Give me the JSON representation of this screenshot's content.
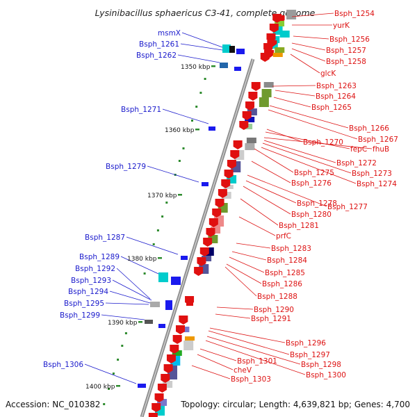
{
  "title": "Lysinibacillus sphaericus C3-41, complete genome",
  "footer": {
    "accession": "Accession: NC_010382",
    "topology": "Topology: circular; Length: 4,639,821 bp; Genes: 4,700"
  },
  "colors": {
    "left_label": "#1a1acc",
    "right_label": "#dd1111",
    "backbone": "#9a9a9a",
    "tick": "#2e8b2e"
  },
  "kbp_marks": [
    "1350 kbp",
    "1360 kbp",
    "1370 kbp",
    "1380 kbp",
    "1390 kbp",
    "1400 kbp"
  ],
  "left_labels": [
    "msmX",
    "Bsph_1261",
    "Bsph_1262",
    "Bsph_1271",
    "Bsph_1279",
    "Bsph_1287",
    "Bsph_1289",
    "Bsph_1292",
    "Bsph_1293",
    "Bsph_1294",
    "Bsph_1295",
    "Bsph_1299",
    "Bsph_1306"
  ],
  "right_labels": [
    "Bsph_1254",
    "yurK",
    "Bsph_1256",
    "Bsph_1257",
    "Bsph_1258",
    "glcK",
    "Bsph_1263",
    "Bsph_1264",
    "Bsph_1265",
    "Bsph_1266",
    "Bsph_1267",
    "Bsph_1270",
    "fepC",
    "fhuB",
    "Bsph_1272",
    "Bsph_1273",
    "Bsph_1274",
    "Bsph_1275",
    "Bsph_1276",
    "Bsph_1277",
    "Bsph_1278",
    "Bsph_1280",
    "Bsph_1281",
    "prfC",
    "Bsph_1283",
    "Bsph_1284",
    "Bsph_1285",
    "Bsph_1286",
    "Bsph_1288",
    "Bsph_1290",
    "Bsph_1291",
    "Bsph_1296",
    "Bsph_1297",
    "Bsph_1298",
    "Bsph_1300",
    "Bsph_1301",
    "cheV",
    "Bsph_1303"
  ]
}
